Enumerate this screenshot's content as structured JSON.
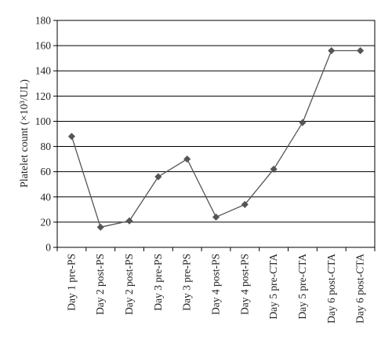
{
  "chart_data": {
    "type": "line",
    "title": "",
    "xlabel": "",
    "ylabel": "Platelet count (×10³/UL)",
    "categories": [
      "Day 1 pre-PS",
      "Day 2 post-PS",
      "Day 2 post-PS",
      "Day 3 pre-PS",
      "Day 3 pre-PS",
      "Day 4 post-PS",
      "Day 4 post-PS",
      "Day 5 pre-CTA",
      "Day 5 pre-CTA",
      "Day 6 post-CTA",
      "Day 6 post-CTA"
    ],
    "series": [
      {
        "values": [
          88,
          16,
          21,
          56,
          70,
          24,
          34,
          62,
          99,
          156,
          156
        ]
      }
    ],
    "ylim": [
      0,
      180
    ],
    "yticks": [
      0,
      20,
      40,
      60,
      80,
      100,
      120,
      140,
      160,
      180
    ],
    "grid": true,
    "marker": "diamond",
    "colors": {
      "line": "#555555",
      "marker": "#555555",
      "grid": "#000000",
      "axis": "#000000"
    }
  }
}
